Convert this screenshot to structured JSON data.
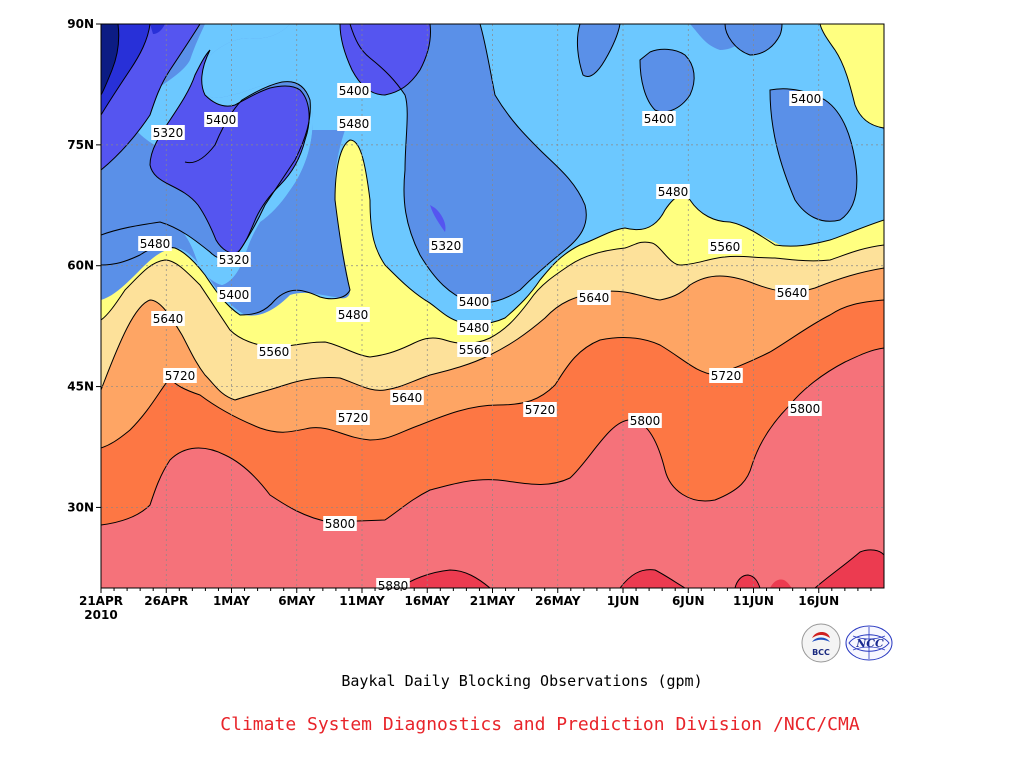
{
  "chart_data": {
    "type": "contour",
    "title": "Baykal Daily Blocking Observations (gpm)",
    "y_ticks": [
      "90N",
      "75N",
      "60N",
      "45N",
      "30N"
    ],
    "x_ticks": [
      "21APR",
      "26APR",
      "1MAY",
      "6MAY",
      "11MAY",
      "16MAY",
      "21MAY",
      "26MAY",
      "1JUN",
      "6JUN",
      "11JUN",
      "16JUN"
    ],
    "x_year": "2010",
    "contour_interval": 80,
    "levels": [
      5240,
      5320,
      5400,
      5480,
      5560,
      5640,
      5720,
      5800,
      5880
    ],
    "fill_colors": [
      "#0c1c84",
      "#2830d8",
      "#5555f0",
      "#5a90e8",
      "#6cc8ff",
      "#ffff80",
      "#fde19a",
      "#fea564",
      "#fd7744",
      "#f5727a",
      "#ec3b50"
    ],
    "contour_labels": [
      "5320",
      "5400",
      "5400",
      "5400",
      "5400",
      "5480",
      "5320",
      "5320",
      "5480",
      "5400",
      "5480",
      "5400",
      "5480",
      "5560",
      "5640",
      "5480",
      "5560",
      "5640",
      "5560",
      "5720",
      "5640",
      "5640",
      "5720",
      "5720",
      "5720",
      "5800",
      "5800",
      "5800",
      "5880"
    ],
    "ylim": [
      "20N",
      "90N"
    ],
    "xlabel": "",
    "ylabel": ""
  },
  "caption": {
    "title": "Baykal Daily Blocking Observations (gpm)",
    "org": "Climate System Diagnostics and Prediction Division /NCC/CMA"
  },
  "logos": {
    "bcc": "BCC",
    "ncc": "NCC"
  }
}
